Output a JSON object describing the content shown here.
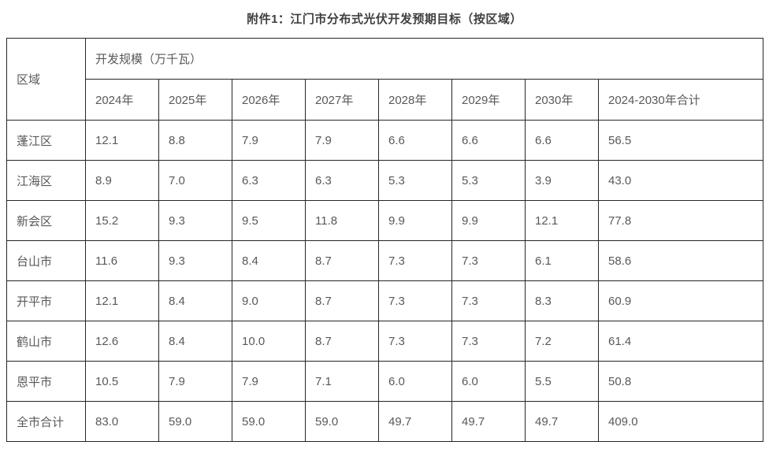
{
  "title": "附件1：江门市分布式光伏开发预期目标（按区域）",
  "table": {
    "region_header": "区域",
    "scale_header": "开发规模（万千瓦）",
    "year_headers": [
      "2024年",
      "2025年",
      "2026年",
      "2027年",
      "2028年",
      "2029年",
      "2030年",
      "2024-2030年合计"
    ],
    "rows": [
      {
        "region": "蓬江区",
        "values": [
          "12.1",
          "8.8",
          "7.9",
          "7.9",
          "6.6",
          "6.6",
          "6.6",
          "56.5"
        ]
      },
      {
        "region": "江海区",
        "values": [
          "8.9",
          "7.0",
          "6.3",
          "6.3",
          "5.3",
          "5.3",
          "3.9",
          "43.0"
        ]
      },
      {
        "region": "新会区",
        "values": [
          "15.2",
          "9.3",
          "9.5",
          "11.8",
          "9.9",
          "9.9",
          "12.1",
          "77.8"
        ]
      },
      {
        "region": "台山市",
        "values": [
          "11.6",
          "9.3",
          "8.4",
          "8.7",
          "7.3",
          "7.3",
          "6.1",
          "58.6"
        ]
      },
      {
        "region": "开平市",
        "values": [
          "12.1",
          "8.4",
          "9.0",
          "8.7",
          "7.3",
          "7.3",
          "8.3",
          "60.9"
        ]
      },
      {
        "region": "鹤山市",
        "values": [
          "12.6",
          "8.4",
          "10.0",
          "8.7",
          "7.3",
          "7.3",
          "7.2",
          "61.4"
        ]
      },
      {
        "region": "恩平市",
        "values": [
          "10.5",
          "7.9",
          "7.9",
          "7.1",
          "6.0",
          "6.0",
          "5.5",
          "50.8"
        ]
      },
      {
        "region": "全市合计",
        "values": [
          "83.0",
          "59.0",
          "59.0",
          "59.0",
          "49.7",
          "49.7",
          "49.7",
          "409.0"
        ]
      }
    ]
  },
  "chart_data": {
    "type": "table",
    "title": "附件1：江门市分布式光伏开发预期目标（按区域）",
    "unit": "万千瓦",
    "categories": [
      "2024年",
      "2025年",
      "2026年",
      "2027年",
      "2028年",
      "2029年",
      "2030年",
      "2024-2030年合计"
    ],
    "series": [
      {
        "name": "蓬江区",
        "values": [
          12.1,
          8.8,
          7.9,
          7.9,
          6.6,
          6.6,
          6.6,
          56.5
        ]
      },
      {
        "name": "江海区",
        "values": [
          8.9,
          7.0,
          6.3,
          6.3,
          5.3,
          5.3,
          3.9,
          43.0
        ]
      },
      {
        "name": "新会区",
        "values": [
          15.2,
          9.3,
          9.5,
          11.8,
          9.9,
          9.9,
          12.1,
          77.8
        ]
      },
      {
        "name": "台山市",
        "values": [
          11.6,
          9.3,
          8.4,
          8.7,
          7.3,
          7.3,
          6.1,
          58.6
        ]
      },
      {
        "name": "开平市",
        "values": [
          12.1,
          8.4,
          9.0,
          8.7,
          7.3,
          7.3,
          8.3,
          60.9
        ]
      },
      {
        "name": "鹤山市",
        "values": [
          12.6,
          8.4,
          10.0,
          8.7,
          7.3,
          7.3,
          7.2,
          61.4
        ]
      },
      {
        "name": "恩平市",
        "values": [
          10.5,
          7.9,
          7.9,
          7.1,
          6.0,
          6.0,
          5.5,
          50.8
        ]
      },
      {
        "name": "全市合计",
        "values": [
          83.0,
          59.0,
          59.0,
          59.0,
          49.7,
          49.7,
          49.7,
          409.0
        ]
      }
    ]
  },
  "colors": {
    "border": "#262626",
    "body_text": "#595959",
    "label_text": "#4a4a4a",
    "title_text": "#3f3f3f",
    "background": "#ffffff"
  }
}
